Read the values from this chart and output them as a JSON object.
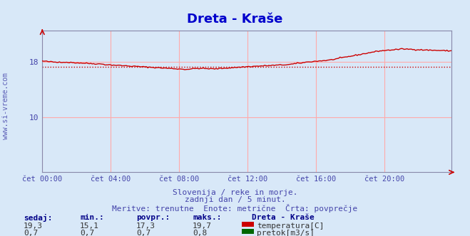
{
  "title": "Dreta - Kraše",
  "title_color": "#0000cc",
  "background_color": "#d8e8f8",
  "plot_bg_color": "#d8e8f8",
  "grid_color_major": "#ffaaaa",
  "tick_color": "#4444aa",
  "temp_color": "#cc0000",
  "flow_color": "#006600",
  "avg_line_color": "#cc0000",
  "avg_line_value": 17.3,
  "y_min": 2.0,
  "y_max": 22.5,
  "yticks": [
    10,
    18
  ],
  "x_labels": [
    "čet 00:00",
    "čet 04:00",
    "čet 08:00",
    "čet 12:00",
    "čet 16:00",
    "čet 20:00"
  ],
  "subtitle1": "Slovenija / reke in morje.",
  "subtitle2": "zadnji dan / 5 minut.",
  "subtitle3": "Meritve: trenutne  Enote: metrične  Črta: povprečje",
  "subtitle_color": "#4444aa",
  "watermark": "www.si-vreme.com",
  "watermark_color": "#4444aa",
  "legend_title": "Dreta - Kraše",
  "legend_title_color": "#000088",
  "stats_labels": [
    "sedaj:",
    "min.:",
    "povpr.:",
    "maks.:"
  ],
  "stats_color": "#000088",
  "stats_temp": [
    "19,3",
    "15,1",
    "17,3",
    "19,7"
  ],
  "stats_flow": [
    "0,7",
    "0,7",
    "0,7",
    "0,8"
  ],
  "label_temp": "temperatura[C]",
  "label_flow": "pretok[m3/s]"
}
